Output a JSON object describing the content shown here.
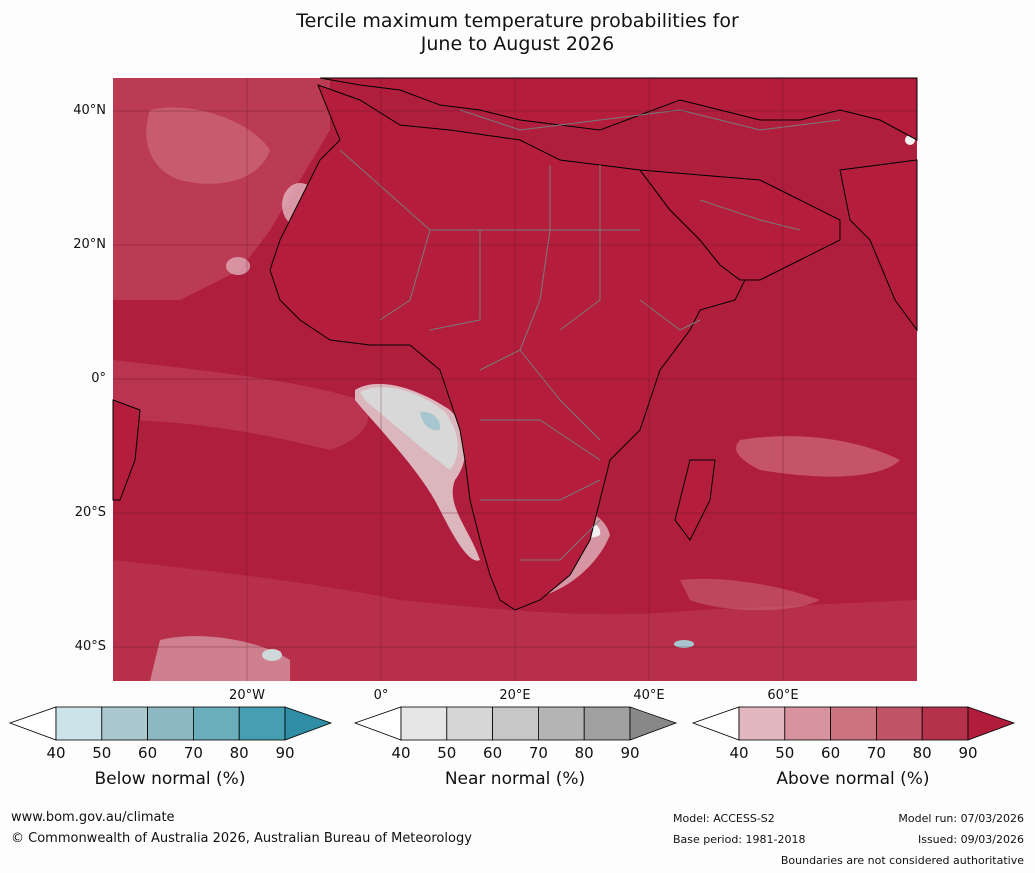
{
  "title": {
    "line1": "Tercile maximum temperature probabilities for",
    "line2": "June to August 2026"
  },
  "map": {
    "lat_labels": [
      "40°N",
      "20°N",
      "0°",
      "20°S",
      "40°S"
    ],
    "lon_labels": [
      "20°W",
      "0°",
      "20°E",
      "40°E",
      "60°E"
    ],
    "colors": {
      "ocean_base": "#b01e3e",
      "land_base": "#b41d3b",
      "border_line": "#7a7a7a",
      "coast_line": "#000000"
    }
  },
  "colorbars": [
    {
      "label": "Below normal (%)",
      "ticks": [
        "40",
        "50",
        "60",
        "70",
        "80",
        "90"
      ],
      "colors": [
        "#ffffff",
        "#cde3ea",
        "#acc8cf",
        "#8db7c2",
        "#6aaebb",
        "#459fb0",
        "#2f8ea6"
      ]
    },
    {
      "label": "Near normal (%)",
      "ticks": [
        "40",
        "50",
        "60",
        "70",
        "80",
        "90"
      ],
      "colors": [
        "#ffffff",
        "#e6e6e6",
        "#d6d6d6",
        "#c7c7c7",
        "#b4b4b4",
        "#a0a0a0",
        "#888888"
      ]
    },
    {
      "label": "Above normal (%)",
      "ticks": [
        "40",
        "50",
        "60",
        "70",
        "80",
        "90"
      ],
      "colors": [
        "#ffffff",
        "#e2b7bf",
        "#d7949f",
        "#cb7480",
        "#c15366",
        "#b4334a",
        "#b01c3c"
      ]
    }
  ],
  "footer": {
    "website": "www.bom.gov.au/climate",
    "copyright": "© Commonwealth of Australia 2026, Australian Bureau of Meteorology",
    "model": "Model: ACCESS-S2",
    "base_period": "Base period: 1981-2018",
    "model_run": "Model run: 07/03/2026",
    "issued": "Issued: 09/03/2026",
    "disclaimer": "Boundaries are not considered authoritative"
  }
}
